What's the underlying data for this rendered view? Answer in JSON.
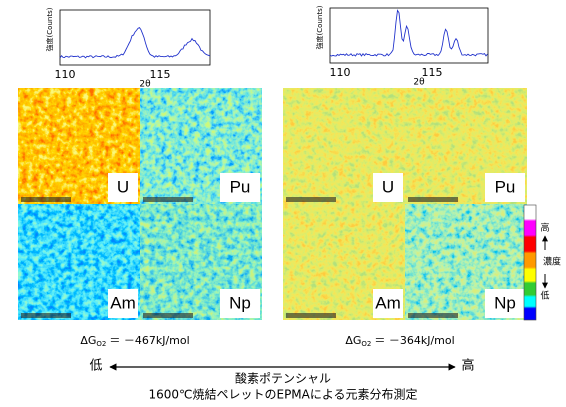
{
  "xrd_panels": [
    {
      "y_label": "強度(Counts)",
      "x_ticks": [
        "110",
        "115"
      ],
      "x_label": "2θ"
    },
    {
      "y_label": "強度(Counts)",
      "x_ticks": [
        "110",
        "115"
      ],
      "x_label": "2θ"
    }
  ],
  "map_groups": [
    {
      "elements": [
        "U",
        "Pu",
        "Am",
        "Np"
      ],
      "delta_g": {
        "prefix": "ΔG",
        "subscript": "O2",
        "value": "＝ －467kJ/mol"
      }
    },
    {
      "elements": [
        "U",
        "Pu",
        "Am",
        "Np"
      ],
      "delta_g": {
        "prefix": "ΔG",
        "subscript": "O2",
        "value": "＝ －364kJ/mol"
      }
    }
  ],
  "color_bar": {
    "high": "高",
    "label": "濃度",
    "low": "低"
  },
  "potential_axis": {
    "low": "低",
    "high": "高",
    "label": "酸素ポテンシャル"
  },
  "caption": "1600℃焼結ペレットのEPMAによる元素分布測定"
}
